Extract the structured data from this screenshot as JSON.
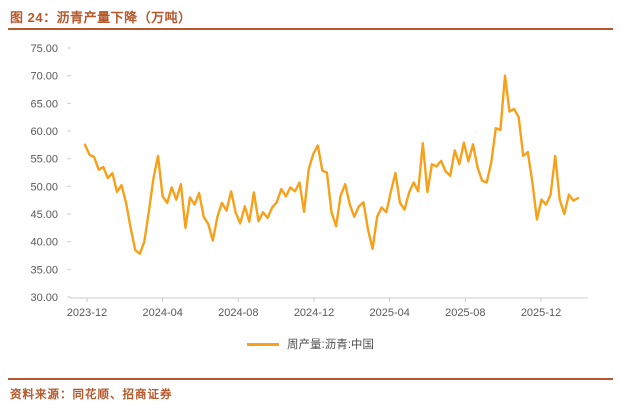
{
  "header": {
    "title": "图 24：沥青产量下降（万吨）"
  },
  "footer": {
    "source": "资料来源：同花顺、招商证券"
  },
  "colors": {
    "accent_brick": "#B5582B",
    "series_orange": "#F7A11B",
    "axis_text_gray": "#595959",
    "axis_line_gray": "#D6D6D6"
  },
  "chart_data": {
    "type": "line",
    "title": "沥青产量下降（万吨）",
    "unit": "万吨",
    "frequency": "weekly",
    "legend_entries": [
      "周产量:沥青:中国"
    ],
    "legend_position": "bottom",
    "grid": false,
    "ylim": [
      30,
      75
    ],
    "y_ticks": [
      30,
      35,
      40,
      45,
      50,
      55,
      60,
      65,
      70,
      75
    ],
    "y_tick_format": "0.00",
    "x_tick_labels": [
      "2023-12",
      "2024-04",
      "2024-08",
      "2024-12",
      "2025-04",
      "2025-08",
      "2025-12"
    ],
    "series": [
      {
        "name": "周产量:沥青:中国",
        "color": "#F7A11B",
        "values": [
          57.5,
          55.7,
          55.3,
          53.0,
          53.5,
          51.5,
          52.4,
          49.0,
          50.2,
          47.0,
          42.5,
          38.5,
          37.8,
          40.0,
          45.5,
          51.5,
          55.5,
          48.2,
          47.0,
          49.8,
          47.6,
          50.4,
          42.5,
          48.0,
          46.7,
          48.8,
          44.5,
          43.2,
          40.2,
          44.5,
          47.0,
          45.6,
          49.1,
          45.3,
          43.3,
          46.4,
          43.6,
          48.9,
          43.7,
          45.3,
          44.3,
          46.2,
          47.1,
          49.5,
          48.2,
          49.8,
          49.1,
          50.7,
          45.4,
          53.1,
          55.8,
          57.4,
          52.8,
          52.5,
          45.3,
          42.8,
          48.3,
          50.4,
          46.7,
          44.5,
          46.4,
          47.1,
          42.2,
          38.7,
          44.5,
          46.2,
          45.3,
          49.0,
          52.4,
          47.0,
          45.8,
          48.9,
          50.7,
          49.1,
          57.8,
          49.0,
          54.0,
          53.6,
          54.6,
          52.7,
          51.9,
          56.5,
          54.0,
          57.9,
          54.5,
          57.6,
          53.4,
          51.0,
          50.7,
          54.4,
          60.5,
          60.2,
          70.0,
          63.5,
          64.0,
          62.5,
          55.5,
          56.2,
          50.7,
          44.0,
          47.6,
          46.7,
          48.5,
          55.5,
          47.6,
          45.0,
          48.5,
          47.4,
          47.9
        ]
      }
    ]
  }
}
